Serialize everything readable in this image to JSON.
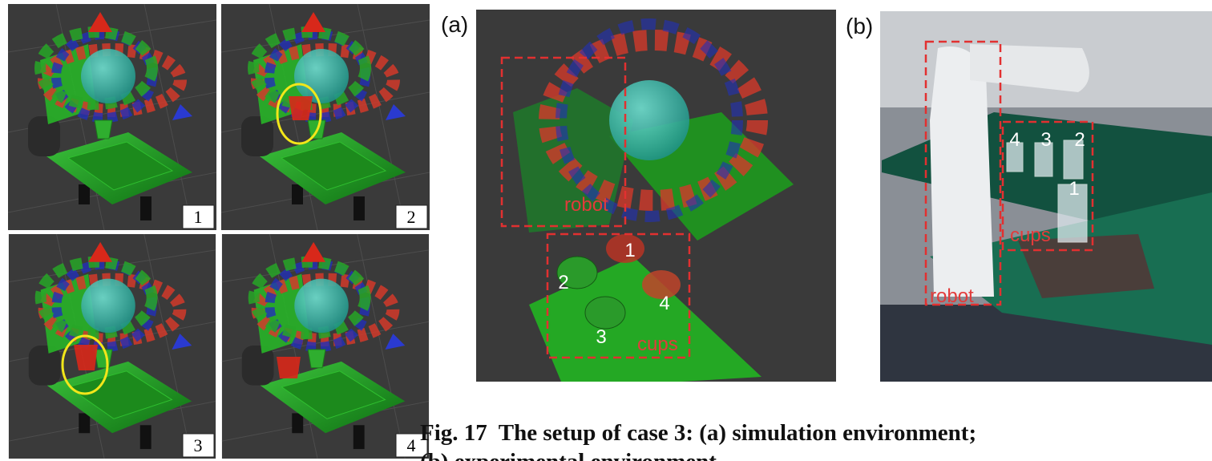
{
  "simulation_steps": [
    {
      "label": "1"
    },
    {
      "label": "2"
    },
    {
      "label": "3"
    },
    {
      "label": "4"
    }
  ],
  "panel_a": {
    "label": "(a)",
    "regions": [
      {
        "label": "robot"
      },
      {
        "label": "cups"
      }
    ],
    "cup_numbers": [
      "1",
      "2",
      "3",
      "4"
    ]
  },
  "panel_b": {
    "label": "(b)",
    "regions": [
      {
        "label": "robot"
      },
      {
        "label": "cups"
      }
    ],
    "cup_numbers": [
      "4",
      "3",
      "2",
      "1"
    ]
  },
  "caption": {
    "line1": "Fig. 17  The setup of case 3: (a) simulation environment;",
    "line2": "(b) experimental environment."
  }
}
